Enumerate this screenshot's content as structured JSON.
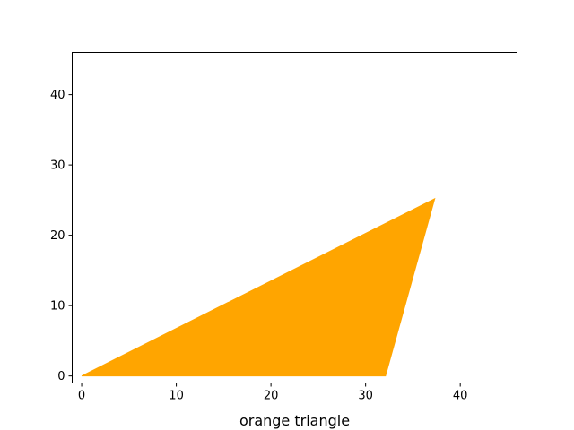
{
  "chart_data": {
    "type": "area",
    "title": "",
    "xlabel": "orange triangle",
    "ylabel": "",
    "xlim": [
      -1,
      46
    ],
    "ylim": [
      -1,
      46
    ],
    "grid": false,
    "x_ticks": [
      0,
      10,
      20,
      30,
      40
    ],
    "y_ticks": [
      0,
      10,
      20,
      30,
      40
    ],
    "series": [
      {
        "shape": "polygon",
        "color": "#ffa500",
        "points": [
          [
            0,
            0
          ],
          [
            32.1,
            0
          ],
          [
            37.3,
            25.2
          ]
        ]
      }
    ]
  }
}
